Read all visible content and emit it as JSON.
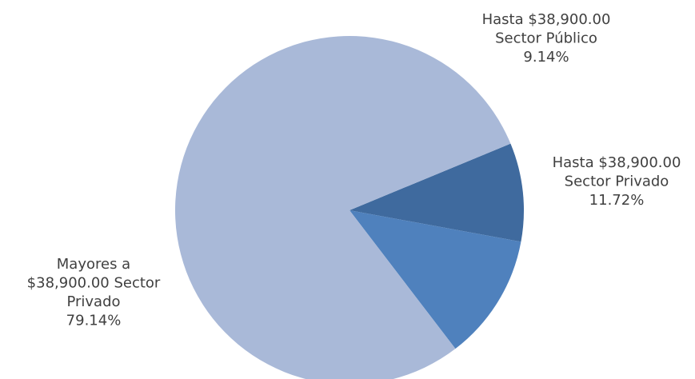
{
  "chart_data": {
    "type": "pie",
    "title": "",
    "start_angle_deg": 67.5,
    "direction": "clockwise",
    "slices": [
      {
        "name": "Hasta $38,900.00 Sector Público",
        "value": 9.14,
        "value_label": "9.14%",
        "label_lines": [
          "Hasta $38,900.00",
          "Sector Público",
          "9.14%"
        ],
        "color": "#3F6A9E"
      },
      {
        "name": "Hasta $38,900.00 Sector Privado",
        "value": 11.72,
        "value_label": "11.72%",
        "label_lines": [
          "Hasta $38,900.00",
          "Sector Privado",
          "11.72%"
        ],
        "color": "#4F81BD"
      },
      {
        "name": "Mayores a $38,900.00 Sector Privado",
        "value": 79.14,
        "value_label": "79.14%",
        "label_lines": [
          "Mayores a",
          "$38,900.00 Sector",
          "Privado",
          "79.14%"
        ],
        "color": "#A9B9D8"
      }
    ],
    "legend": "none",
    "label_color": "#404040"
  }
}
